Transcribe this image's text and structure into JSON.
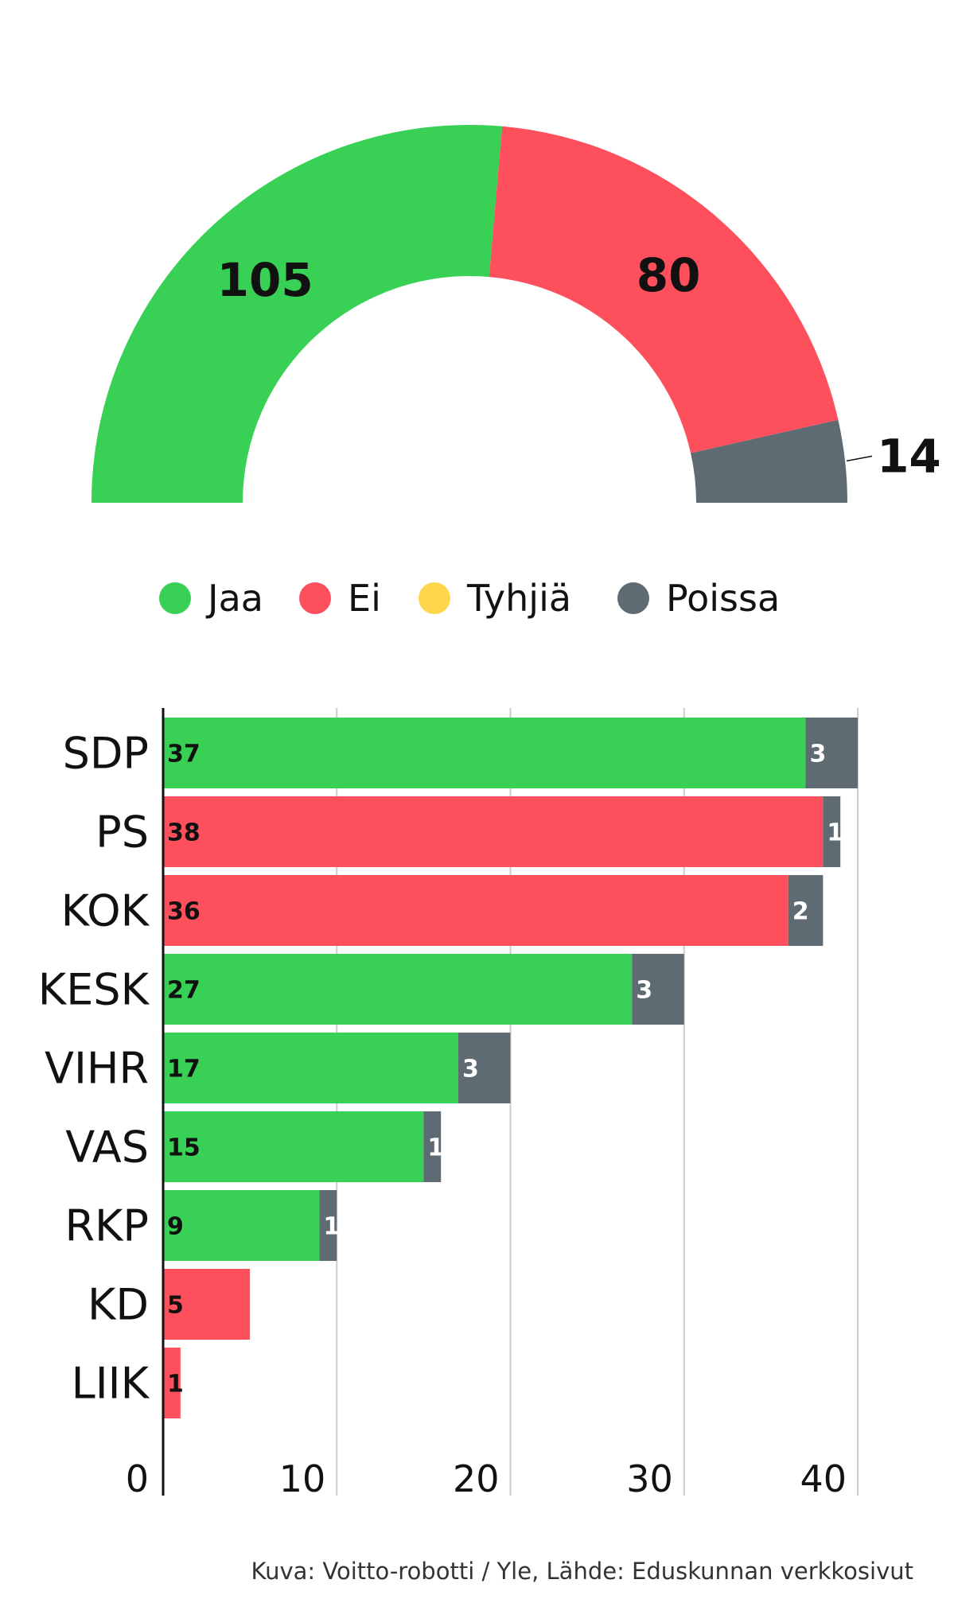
{
  "colors": {
    "jaa": "#38d155",
    "ei": "#fe4f5d",
    "tyhjia": "#ffd54a",
    "poissa": "#5f6b73",
    "text": "#111111",
    "grid": "#cccccc",
    "credit": "#333333"
  },
  "chart_data": [
    {
      "type": "pie",
      "variant": "half-donut",
      "slices": [
        {
          "label": "Jaa",
          "value": 105,
          "color": "#38d155"
        },
        {
          "label": "Ei",
          "value": 80,
          "color": "#fe4f5d"
        },
        {
          "label": "Tyhjiä",
          "value": 0,
          "color": "#ffd54a"
        },
        {
          "label": "Poissa",
          "value": 14,
          "color": "#5f6b73"
        }
      ],
      "legend": [
        "Jaa",
        "Ei",
        "Tyhjiä",
        "Poissa"
      ],
      "legend_position": "bottom"
    },
    {
      "type": "bar",
      "orientation": "horizontal",
      "stacked": true,
      "categories": [
        "SDP",
        "PS",
        "KOK",
        "KESK",
        "VIHR",
        "VAS",
        "RKP",
        "KD",
        "LIIK"
      ],
      "series": [
        {
          "name": "Jaa",
          "values": [
            37,
            0,
            0,
            27,
            17,
            15,
            9,
            0,
            0
          ]
        },
        {
          "name": "Ei",
          "values": [
            0,
            38,
            36,
            0,
            0,
            0,
            0,
            5,
            1
          ]
        },
        {
          "name": "Tyhjiä",
          "values": [
            0,
            0,
            0,
            0,
            0,
            0,
            0,
            0,
            0
          ]
        },
        {
          "name": "Poissa",
          "values": [
            3,
            1,
            2,
            3,
            3,
            1,
            1,
            0,
            0
          ]
        }
      ],
      "xticks": [
        "0",
        "10",
        "20",
        "30",
        "40"
      ],
      "xlim": [
        0,
        40
      ],
      "grid": true
    }
  ],
  "credit": "Kuva: Voitto-robotti / Yle, Lähde: Eduskunnan verkkosivut"
}
